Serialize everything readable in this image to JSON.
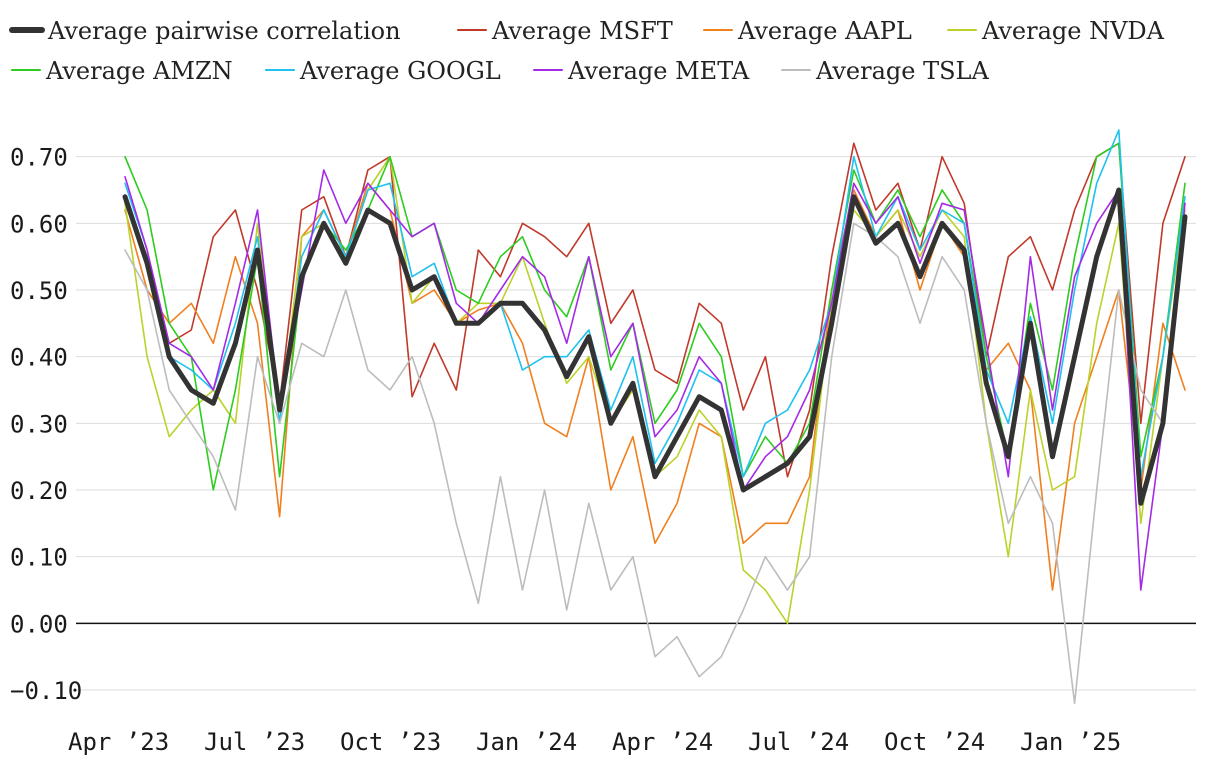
{
  "chart_data": {
    "type": "line",
    "title": "",
    "xlabel": "",
    "ylabel": "",
    "ylim": [
      -0.13,
      0.77
    ],
    "x_ticks": [
      "Apr ’23",
      "Jul ’23",
      "Oct ’23",
      "Jan ’24",
      "Apr ’24",
      "Jul ’24",
      "Oct ’24",
      "Jan ’25"
    ],
    "y_ticks": [
      {
        "value": 0.7,
        "label": "0.70"
      },
      {
        "value": 0.6,
        "label": "0.60"
      },
      {
        "value": 0.5,
        "label": "0.50"
      },
      {
        "value": 0.4,
        "label": "0.40"
      },
      {
        "value": 0.3,
        "label": "0.30"
      },
      {
        "value": 0.2,
        "label": "0.20"
      },
      {
        "value": 0.1,
        "label": "0.10"
      },
      {
        "value": 0.0,
        "label": "0.00"
      },
      {
        "value": -0.1,
        "label": "−0.10"
      }
    ],
    "x_unit": "months since Apr 2023",
    "x_range": [
      0,
      24
    ],
    "legend_position": "top",
    "series": [
      {
        "name": "Average MSFT",
        "color": "#c0392b",
        "width": 1.6,
        "x": [
          0,
          0.5,
          1,
          1.5,
          2,
          2.5,
          3,
          3.5,
          4,
          4.5,
          5,
          5.5,
          6,
          6.5,
          7,
          7.5,
          8,
          8.5,
          9,
          9.5,
          10,
          10.5,
          11,
          11.5,
          12,
          12.5,
          13,
          13.5,
          14,
          14.5,
          15,
          15.5,
          16,
          16.5,
          17,
          17.5,
          18,
          18.5,
          19,
          19.5,
          20,
          20.5,
          21,
          21.5,
          22,
          22.5,
          23,
          23.5,
          24
        ],
        "y": [
          0.64,
          0.55,
          0.42,
          0.44,
          0.58,
          0.62,
          0.5,
          0.33,
          0.62,
          0.64,
          0.55,
          0.68,
          0.7,
          0.34,
          0.42,
          0.35,
          0.56,
          0.52,
          0.6,
          0.58,
          0.55,
          0.6,
          0.45,
          0.5,
          0.38,
          0.36,
          0.48,
          0.45,
          0.32,
          0.4,
          0.22,
          0.32,
          0.55,
          0.72,
          0.62,
          0.66,
          0.56,
          0.7,
          0.63,
          0.4,
          0.55,
          0.58,
          0.5,
          0.62,
          0.7,
          0.72,
          0.3,
          0.6,
          0.7
        ]
      },
      {
        "name": "Average AAPL",
        "color": "#f07f1e",
        "width": 1.6,
        "x": [
          0,
          0.5,
          1,
          1.5,
          2,
          2.5,
          3,
          3.5,
          4,
          4.5,
          5,
          5.5,
          6,
          6.5,
          7,
          7.5,
          8,
          8.5,
          9,
          9.5,
          10,
          10.5,
          11,
          11.5,
          12,
          12.5,
          13,
          13.5,
          14,
          14.5,
          15,
          15.5,
          16,
          16.5,
          17,
          17.5,
          18,
          18.5,
          19,
          19.5,
          20,
          20.5,
          21,
          21.5,
          22,
          22.5,
          23,
          23.5,
          24
        ],
        "y": [
          0.62,
          0.5,
          0.45,
          0.48,
          0.42,
          0.55,
          0.45,
          0.16,
          0.58,
          0.62,
          0.55,
          0.66,
          0.62,
          0.48,
          0.5,
          0.45,
          0.47,
          0.48,
          0.42,
          0.3,
          0.28,
          0.4,
          0.2,
          0.28,
          0.12,
          0.18,
          0.3,
          0.28,
          0.12,
          0.15,
          0.15,
          0.22,
          0.5,
          0.65,
          0.58,
          0.62,
          0.5,
          0.6,
          0.55,
          0.38,
          0.42,
          0.35,
          0.05,
          0.3,
          0.4,
          0.5,
          0.2,
          0.45,
          0.35
        ]
      },
      {
        "name": "Average NVDA",
        "color": "#bcd22b",
        "width": 1.6,
        "x": [
          0,
          0.5,
          1,
          1.5,
          2,
          2.5,
          3,
          3.5,
          4,
          4.5,
          5,
          5.5,
          6,
          6.5,
          7,
          7.5,
          8,
          8.5,
          9,
          9.5,
          10,
          10.5,
          11,
          11.5,
          12,
          12.5,
          13,
          13.5,
          14,
          14.5,
          15,
          15.5,
          16,
          16.5,
          17,
          17.5,
          18,
          18.5,
          19,
          19.5,
          20,
          20.5,
          21,
          21.5,
          22,
          22.5,
          23,
          23.5,
          24
        ],
        "y": [
          0.63,
          0.4,
          0.28,
          0.32,
          0.35,
          0.3,
          0.6,
          0.3,
          0.58,
          0.6,
          0.55,
          0.65,
          0.7,
          0.48,
          0.52,
          0.45,
          0.48,
          0.48,
          0.55,
          0.45,
          0.36,
          0.4,
          0.3,
          0.35,
          0.22,
          0.25,
          0.32,
          0.28,
          0.08,
          0.05,
          0.0,
          0.2,
          0.48,
          0.62,
          0.58,
          0.62,
          0.55,
          0.62,
          0.58,
          0.3,
          0.1,
          0.35,
          0.2,
          0.22,
          0.45,
          0.6,
          0.15,
          0.4,
          0.62
        ]
      },
      {
        "name": "Average AMZN",
        "color": "#2ecc1f",
        "width": 1.6,
        "x": [
          0,
          0.5,
          1,
          1.5,
          2,
          2.5,
          3,
          3.5,
          4,
          4.5,
          5,
          5.5,
          6,
          6.5,
          7,
          7.5,
          8,
          8.5,
          9,
          9.5,
          10,
          10.5,
          11,
          11.5,
          12,
          12.5,
          13,
          13.5,
          14,
          14.5,
          15,
          15.5,
          16,
          16.5,
          17,
          17.5,
          18,
          18.5,
          19,
          19.5,
          20,
          20.5,
          21,
          21.5,
          22,
          22.5,
          23,
          23.5,
          24
        ],
        "y": [
          0.7,
          0.62,
          0.45,
          0.4,
          0.2,
          0.35,
          0.55,
          0.22,
          0.52,
          0.6,
          0.56,
          0.62,
          0.7,
          0.58,
          0.6,
          0.5,
          0.48,
          0.55,
          0.58,
          0.5,
          0.46,
          0.55,
          0.38,
          0.45,
          0.3,
          0.35,
          0.45,
          0.4,
          0.22,
          0.28,
          0.24,
          0.3,
          0.5,
          0.68,
          0.6,
          0.65,
          0.58,
          0.65,
          0.6,
          0.4,
          0.25,
          0.48,
          0.35,
          0.55,
          0.7,
          0.72,
          0.25,
          0.4,
          0.66
        ]
      },
      {
        "name": "Average GOOGL",
        "color": "#1ec1f0",
        "width": 1.6,
        "x": [
          0,
          0.5,
          1,
          1.5,
          2,
          2.5,
          3,
          3.5,
          4,
          4.5,
          5,
          5.5,
          6,
          6.5,
          7,
          7.5,
          8,
          8.5,
          9,
          9.5,
          10,
          10.5,
          11,
          11.5,
          12,
          12.5,
          13,
          13.5,
          14,
          14.5,
          15,
          15.5,
          16,
          16.5,
          17,
          17.5,
          18,
          18.5,
          19,
          19.5,
          20,
          20.5,
          21,
          21.5,
          22,
          22.5,
          23,
          23.5,
          24
        ],
        "y": [
          0.66,
          0.56,
          0.4,
          0.38,
          0.35,
          0.45,
          0.58,
          0.3,
          0.55,
          0.62,
          0.55,
          0.65,
          0.66,
          0.52,
          0.54,
          0.45,
          0.45,
          0.48,
          0.38,
          0.4,
          0.4,
          0.44,
          0.32,
          0.4,
          0.24,
          0.3,
          0.38,
          0.36,
          0.22,
          0.3,
          0.32,
          0.38,
          0.48,
          0.7,
          0.58,
          0.64,
          0.56,
          0.62,
          0.6,
          0.38,
          0.3,
          0.46,
          0.3,
          0.5,
          0.66,
          0.74,
          0.22,
          0.4,
          0.64
        ]
      },
      {
        "name": "Average META",
        "color": "#a52ae8",
        "width": 1.6,
        "x": [
          0,
          0.5,
          1,
          1.5,
          2,
          2.5,
          3,
          3.5,
          4,
          4.5,
          5,
          5.5,
          6,
          6.5,
          7,
          7.5,
          8,
          8.5,
          9,
          9.5,
          10,
          10.5,
          11,
          11.5,
          12,
          12.5,
          13,
          13.5,
          14,
          14.5,
          15,
          15.5,
          16,
          16.5,
          17,
          17.5,
          18,
          18.5,
          19,
          19.5,
          20,
          20.5,
          21,
          21.5,
          22,
          22.5,
          23,
          23.5,
          24
        ],
        "y": [
          0.67,
          0.56,
          0.42,
          0.4,
          0.35,
          0.48,
          0.62,
          0.32,
          0.5,
          0.68,
          0.6,
          0.66,
          0.62,
          0.58,
          0.6,
          0.48,
          0.45,
          0.5,
          0.55,
          0.52,
          0.42,
          0.55,
          0.4,
          0.45,
          0.28,
          0.32,
          0.4,
          0.36,
          0.2,
          0.25,
          0.28,
          0.35,
          0.48,
          0.66,
          0.6,
          0.64,
          0.54,
          0.63,
          0.62,
          0.42,
          0.22,
          0.55,
          0.32,
          0.52,
          0.6,
          0.65,
          0.05,
          0.3,
          0.63
        ]
      },
      {
        "name": "Average TSLA",
        "color": "#bdbdbd",
        "width": 1.6,
        "x": [
          0,
          0.5,
          1,
          1.5,
          2,
          2.5,
          3,
          3.5,
          4,
          4.5,
          5,
          5.5,
          6,
          6.5,
          7,
          7.5,
          8,
          8.5,
          9,
          9.5,
          10,
          10.5,
          11,
          11.5,
          12,
          12.5,
          13,
          13.5,
          14,
          14.5,
          15,
          15.5,
          16,
          16.5,
          17,
          17.5,
          18,
          18.5,
          19,
          19.5,
          20,
          20.5,
          21,
          21.5,
          22,
          22.5,
          23,
          23.5,
          24
        ],
        "y": [
          0.56,
          0.5,
          0.35,
          0.3,
          0.25,
          0.17,
          0.4,
          0.3,
          0.42,
          0.4,
          0.5,
          0.38,
          0.35,
          0.4,
          0.3,
          0.15,
          0.03,
          0.22,
          0.05,
          0.2,
          0.02,
          0.18,
          0.05,
          0.1,
          -0.05,
          -0.02,
          -0.08,
          -0.05,
          0.02,
          0.1,
          0.05,
          0.1,
          0.4,
          0.6,
          0.58,
          0.55,
          0.45,
          0.55,
          0.5,
          0.3,
          0.15,
          0.22,
          0.15,
          -0.12,
          0.2,
          0.5,
          0.35,
          0.3,
          0.6
        ]
      },
      {
        "name": "Average pairwise correlation",
        "color": "#333333",
        "width": 5,
        "x": [
          0,
          0.5,
          1,
          1.5,
          2,
          2.5,
          3,
          3.5,
          4,
          4.5,
          5,
          5.5,
          6,
          6.5,
          7,
          7.5,
          8,
          8.5,
          9,
          9.5,
          10,
          10.5,
          11,
          11.5,
          12,
          12.5,
          13,
          13.5,
          14,
          14.5,
          15,
          15.5,
          16,
          16.5,
          17,
          17.5,
          18,
          18.5,
          19,
          19.5,
          20,
          20.5,
          21,
          21.5,
          22,
          22.5,
          23,
          23.5,
          24
        ],
        "y": [
          0.64,
          0.54,
          0.4,
          0.35,
          0.33,
          0.42,
          0.56,
          0.32,
          0.52,
          0.6,
          0.54,
          0.62,
          0.6,
          0.5,
          0.52,
          0.45,
          0.45,
          0.48,
          0.48,
          0.44,
          0.37,
          0.43,
          0.3,
          0.36,
          0.22,
          0.28,
          0.34,
          0.32,
          0.2,
          0.22,
          0.24,
          0.28,
          0.45,
          0.64,
          0.57,
          0.6,
          0.52,
          0.6,
          0.56,
          0.36,
          0.25,
          0.45,
          0.25,
          0.4,
          0.55,
          0.65,
          0.18,
          0.3,
          0.61
        ]
      }
    ],
    "legend": [
      {
        "label": "Average pairwise correlation",
        "color": "#333333",
        "width": 6
      },
      {
        "label": "Average MSFT",
        "color": "#c0392b",
        "width": 2
      },
      {
        "label": "Average AAPL",
        "color": "#f07f1e",
        "width": 2
      },
      {
        "label": "Average NVDA",
        "color": "#bcd22b",
        "width": 2
      },
      {
        "label": "Average AMZN",
        "color": "#2ecc1f",
        "width": 2
      },
      {
        "label": "Average GOOGL",
        "color": "#1ec1f0",
        "width": 2
      },
      {
        "label": "Average META",
        "color": "#a52ae8",
        "width": 2
      },
      {
        "label": "Average TSLA",
        "color": "#bdbdbd",
        "width": 2
      }
    ]
  }
}
